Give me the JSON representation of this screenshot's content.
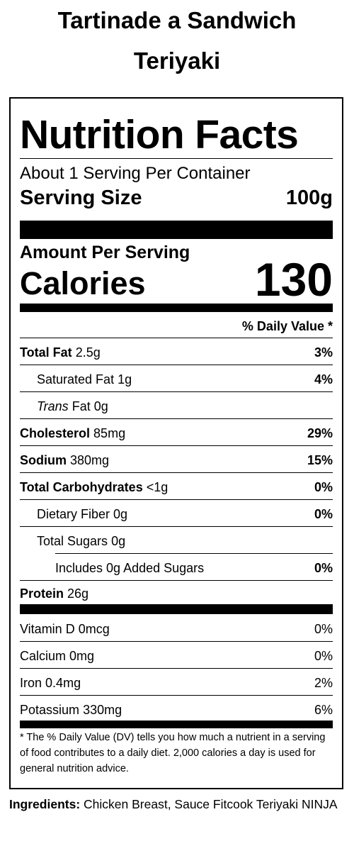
{
  "product": {
    "title_line1": "Tartinade a Sandwich",
    "title_line2": "Teriyaki"
  },
  "label": {
    "heading": "Nutrition Facts",
    "servings_per_container": "About 1 Serving Per Container",
    "serving_size_label": "Serving Size",
    "serving_size_value": "100g",
    "amount_per_serving": "Amount Per Serving",
    "calories_label": "Calories",
    "calories_value": "130",
    "daily_value_header": "% Daily Value *",
    "nutrients": [
      {
        "name": "Total Fat",
        "amount": "2.5g",
        "dv": "3%"
      },
      {
        "name": "Saturated Fat",
        "amount": "1g",
        "dv": "4%"
      },
      {
        "name_prefix": "Trans",
        "name": "Fat",
        "amount": "0g",
        "dv": ""
      },
      {
        "name": "Cholesterol",
        "amount": "85mg",
        "dv": "29%"
      },
      {
        "name": "Sodium",
        "amount": "380mg",
        "dv": "15%"
      },
      {
        "name": "Total Carbohydrates",
        "amount": "<1g",
        "dv": "0%"
      },
      {
        "name": "Dietary Fiber",
        "amount": "0g",
        "dv": "0%"
      },
      {
        "name": "Total Sugars",
        "amount": "0g",
        "dv": ""
      },
      {
        "name": "Includes 0g Added Sugars",
        "amount": "",
        "dv": "0%"
      },
      {
        "name": "Protein",
        "amount": "26g",
        "dv": ""
      }
    ],
    "vitamins": [
      {
        "name": "Vitamin D",
        "amount": "0mcg",
        "dv": "0%"
      },
      {
        "name": "Calcium",
        "amount": "0mg",
        "dv": "0%"
      },
      {
        "name": "Iron",
        "amount": "0.4mg",
        "dv": "2%"
      },
      {
        "name": "Potassium",
        "amount": "330mg",
        "dv": "6%"
      }
    ],
    "footnote": "* The % Daily Value (DV) tells you how much a nutrient in a serving of food contributes to a daily diet. 2,000 calories a day is used for general nutrition advice."
  },
  "ingredients": {
    "label": "Ingredients:",
    "text": "Chicken Breast, Sauce Fitcook Teriyaki NINJA"
  }
}
